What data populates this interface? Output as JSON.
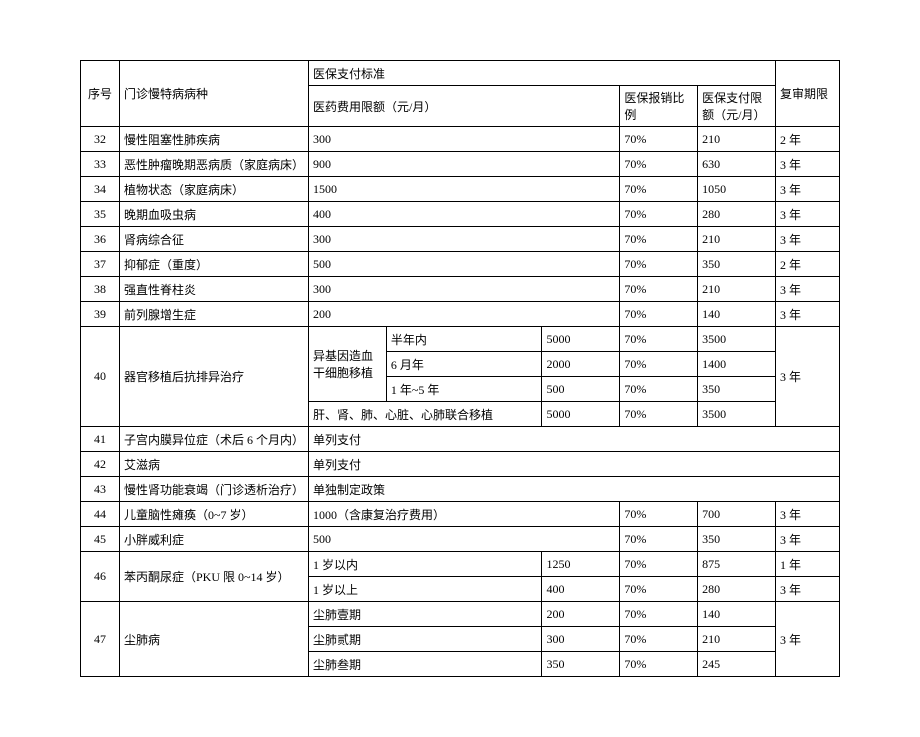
{
  "header": {
    "seq": "序号",
    "disease": "门诊慢特病病种",
    "standard": "医保支付标准",
    "fee_limit": "医药费用限额（元/月）",
    "ratio": "医保报销比例",
    "pay_limit": "医保支付限额（元/月）",
    "review": "复审期限"
  },
  "rows": {
    "r32": {
      "seq": "32",
      "disease": "慢性阻塞性肺疾病",
      "fee": "300",
      "ratio": "70%",
      "limit": "210",
      "review": "2 年"
    },
    "r33": {
      "seq": "33",
      "disease": "恶性肿瘤晚期恶病质（家庭病床）",
      "fee": "900",
      "ratio": "70%",
      "limit": "630",
      "review": "3 年"
    },
    "r34": {
      "seq": "34",
      "disease": "植物状态（家庭病床）",
      "fee": "1500",
      "ratio": "70%",
      "limit": "1050",
      "review": "3 年"
    },
    "r35": {
      "seq": "35",
      "disease": "晚期血吸虫病",
      "fee": "400",
      "ratio": "70%",
      "limit": "280",
      "review": "3 年"
    },
    "r36": {
      "seq": "36",
      "disease": "肾病综合征",
      "fee": "300",
      "ratio": "70%",
      "limit": "210",
      "review": "3 年"
    },
    "r37": {
      "seq": "37",
      "disease": "抑郁症（重度）",
      "fee": "500",
      "ratio": "70%",
      "limit": "350",
      "review": "2 年"
    },
    "r38": {
      "seq": "38",
      "disease": "强直性脊柱炎",
      "fee": "300",
      "ratio": "70%",
      "limit": "210",
      "review": "3 年"
    },
    "r39": {
      "seq": "39",
      "disease": "前列腺增生症",
      "fee": "200",
      "ratio": "70%",
      "limit": "140",
      "review": "3 年"
    },
    "r40": {
      "seq": "40",
      "disease": "器官移植后抗排异治疗",
      "sub1_label": "异基因造血干细胞移植",
      "sub2_label": "肝、肾、肺、心脏、心肺联合移植",
      "p1": {
        "period": "半年内",
        "fee": "5000",
        "ratio": "70%",
        "limit": "3500"
      },
      "p2": {
        "period": "6 月年",
        "fee": "2000",
        "ratio": "70%",
        "limit": "1400"
      },
      "p3": {
        "period": "1 年~5 年",
        "fee": "500",
        "ratio": "70%",
        "limit": "350"
      },
      "p4": {
        "fee": "5000",
        "ratio": "70%",
        "limit": "3500"
      },
      "review": "3 年"
    },
    "r41": {
      "seq": "41",
      "disease": "子宫内膜异位症（术后 6 个月内）",
      "note": "单列支付"
    },
    "r42": {
      "seq": "42",
      "disease": "艾滋病",
      "note": "单列支付"
    },
    "r43": {
      "seq": "43",
      "disease": "慢性肾功能衰竭（门诊透析治疗）",
      "note": "单独制定政策"
    },
    "r44": {
      "seq": "44",
      "disease": "儿童脑性瘫痪（0~7 岁）",
      "fee": "1000（含康复治疗费用）",
      "ratio": "70%",
      "limit": "700",
      "review": "3 年"
    },
    "r45": {
      "seq": "45",
      "disease": "小胖威利症",
      "fee": "500",
      "ratio": "70%",
      "limit": "350",
      "review": "3 年"
    },
    "r46": {
      "seq": "46",
      "disease": "苯丙酮尿症（PKU 限 0~14 岁）",
      "p1": {
        "period": "1 岁以内",
        "fee": "1250",
        "ratio": "70%",
        "limit": "875",
        "review": "1 年"
      },
      "p2": {
        "period": "1 岁以上",
        "fee": "400",
        "ratio": "70%",
        "limit": "280",
        "review": "3 年"
      }
    },
    "r47": {
      "seq": "47",
      "disease": "尘肺病",
      "p1": {
        "period": "尘肺壹期",
        "fee": "200",
        "ratio": "70%",
        "limit": "140"
      },
      "p2": {
        "period": "尘肺贰期",
        "fee": "300",
        "ratio": "70%",
        "limit": "210"
      },
      "p3": {
        "period": "尘肺叁期",
        "fee": "350",
        "ratio": "70%",
        "limit": "245"
      },
      "review": "3 年"
    }
  }
}
